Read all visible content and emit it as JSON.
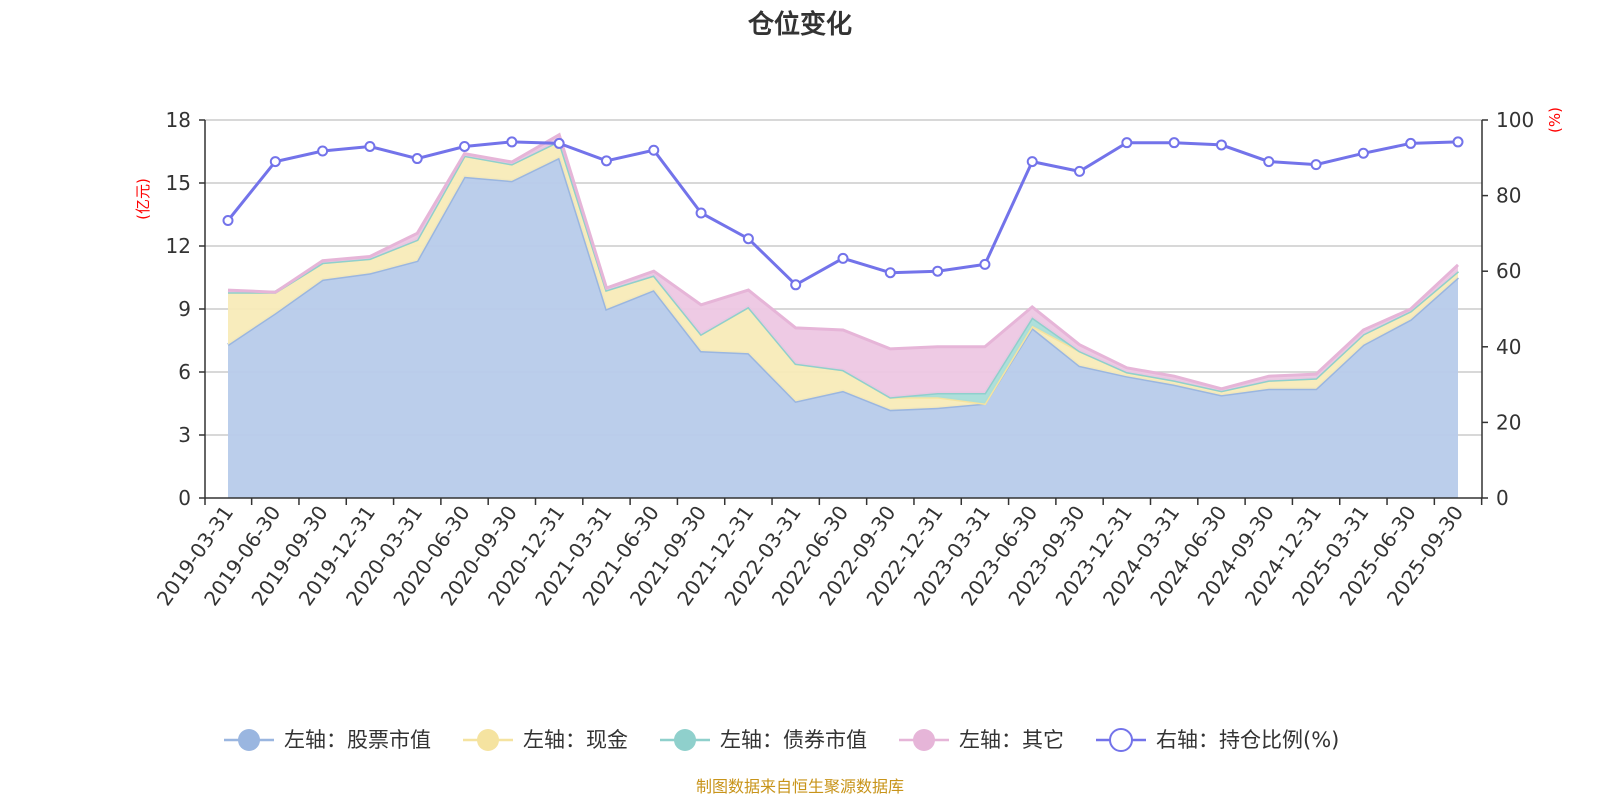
{
  "chart_data": {
    "type": "area",
    "title": "仓位变化",
    "left_axis": {
      "unit": "(亿元)",
      "range": [
        0,
        18
      ],
      "ticks": [
        "0",
        "3",
        "6",
        "9",
        "12",
        "15",
        "18"
      ],
      "tick_values": [
        0,
        3,
        6,
        9,
        12,
        15,
        18
      ]
    },
    "right_axis": {
      "unit": "(%)",
      "range": [
        0,
        100
      ],
      "ticks": [
        "0",
        "20",
        "40",
        "60",
        "80",
        "100"
      ],
      "tick_values": [
        0,
        20,
        40,
        60,
        80,
        100
      ]
    },
    "categories": [
      "2019-03-31",
      "2019-06-30",
      "2019-09-30",
      "2019-12-31",
      "2020-03-31",
      "2020-06-30",
      "2020-09-30",
      "2020-12-31",
      "2021-03-31",
      "2021-06-30",
      "2021-09-30",
      "2021-12-31",
      "2022-03-31",
      "2022-06-30",
      "2022-09-30",
      "2022-12-31",
      "2023-03-31",
      "2023-06-30",
      "2023-09-30",
      "2023-12-31",
      "2024-03-31",
      "2024-06-30",
      "2024-09-30",
      "2024-12-31",
      "2025-03-31",
      "2025-06-30",
      "2025-09-30"
    ],
    "series": [
      {
        "name": "左轴：股票市值",
        "axis": "left",
        "stack": true,
        "color": "#9ab6e0",
        "fill": "#b7cbea",
        "values": [
          7.3,
          8.8,
          10.4,
          10.7,
          11.3,
          15.3,
          15.1,
          16.2,
          9.0,
          9.9,
          7.0,
          6.9,
          4.6,
          5.1,
          4.2,
          4.3,
          4.5,
          8.1,
          6.3,
          5.8,
          5.4,
          4.9,
          5.2,
          5.2,
          7.3,
          8.5,
          10.5
        ]
      },
      {
        "name": "左轴：现金",
        "axis": "left",
        "stack": true,
        "color": "#f5e3a0",
        "fill": "#f8ebb8",
        "values": [
          2.5,
          1.0,
          0.8,
          0.7,
          1.0,
          1.0,
          0.8,
          0.8,
          0.9,
          0.7,
          0.8,
          2.2,
          1.8,
          1.0,
          0.6,
          0.5,
          0.0,
          0.1,
          0.7,
          0.2,
          0.2,
          0.2,
          0.4,
          0.5,
          0.5,
          0.4,
          0.3
        ]
      },
      {
        "name": "左轴：债券市值",
        "axis": "left",
        "stack": true,
        "color": "#8fd0cc",
        "fill": "#a9ddd9",
        "values": [
          0,
          0,
          0,
          0,
          0,
          0,
          0,
          0,
          0,
          0,
          0,
          0,
          0,
          0,
          0,
          0.2,
          0.5,
          0.4,
          0,
          0,
          0,
          0,
          0,
          0,
          0,
          0,
          0
        ]
      },
      {
        "name": "左轴：其它",
        "axis": "left",
        "stack": true,
        "color": "#e6b5d8",
        "fill": "#edc7e3",
        "values": [
          0.1,
          0.0,
          0.1,
          0.1,
          0.3,
          0.1,
          0.1,
          0.3,
          0.1,
          0.2,
          1.4,
          0.8,
          1.7,
          1.9,
          2.3,
          2.2,
          2.2,
          0.5,
          0.3,
          0.2,
          0.2,
          0.1,
          0.2,
          0.2,
          0.2,
          0.1,
          0.3
        ]
      },
      {
        "name": "右轴：持仓比例(%)",
        "axis": "right",
        "type": "line",
        "color": "#7373ea",
        "values": [
          73.4,
          89.0,
          91.8,
          93.0,
          89.8,
          93.0,
          94.2,
          93.8,
          89.2,
          92.0,
          75.4,
          68.6,
          56.4,
          63.4,
          59.6,
          60.0,
          61.8,
          89.0,
          86.4,
          94.0,
          94.0,
          93.4,
          89.0,
          88.2,
          91.2,
          93.8,
          94.2
        ]
      }
    ],
    "legend_position": "bottom",
    "grid": true
  },
  "source_text": "制图数据来自恒生聚源数据库"
}
